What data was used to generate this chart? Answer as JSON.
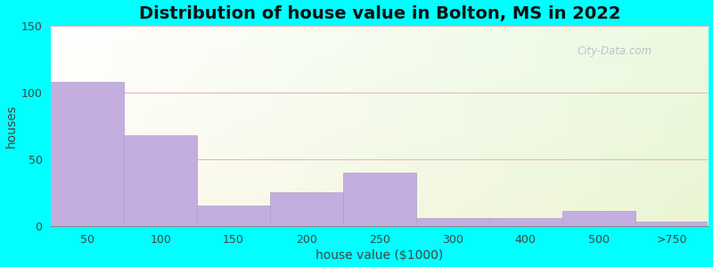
{
  "title": "Distribution of house value in Bolton, MS in 2022",
  "xlabel": "house value ($1000)",
  "ylabel": "houses",
  "tick_labels": [
    "50",
    "100",
    "150",
    "200",
    "250",
    "300",
    "400",
    "500",
    ">750"
  ],
  "bar_values": [
    108,
    68,
    15,
    25,
    40,
    6,
    6,
    11,
    3
  ],
  "bar_color": "#c4aee0",
  "bar_edgecolor": "#b09ccc",
  "ylim": [
    0,
    150
  ],
  "yticks": [
    0,
    50,
    100,
    150
  ],
  "background_outer": "#00ffff",
  "title_fontsize": 14,
  "axis_label_fontsize": 10,
  "tick_fontsize": 9,
  "watermark_text": "City-Data.com",
  "grid_color": "#e0b8c0",
  "grid_linewidth": 0.8
}
